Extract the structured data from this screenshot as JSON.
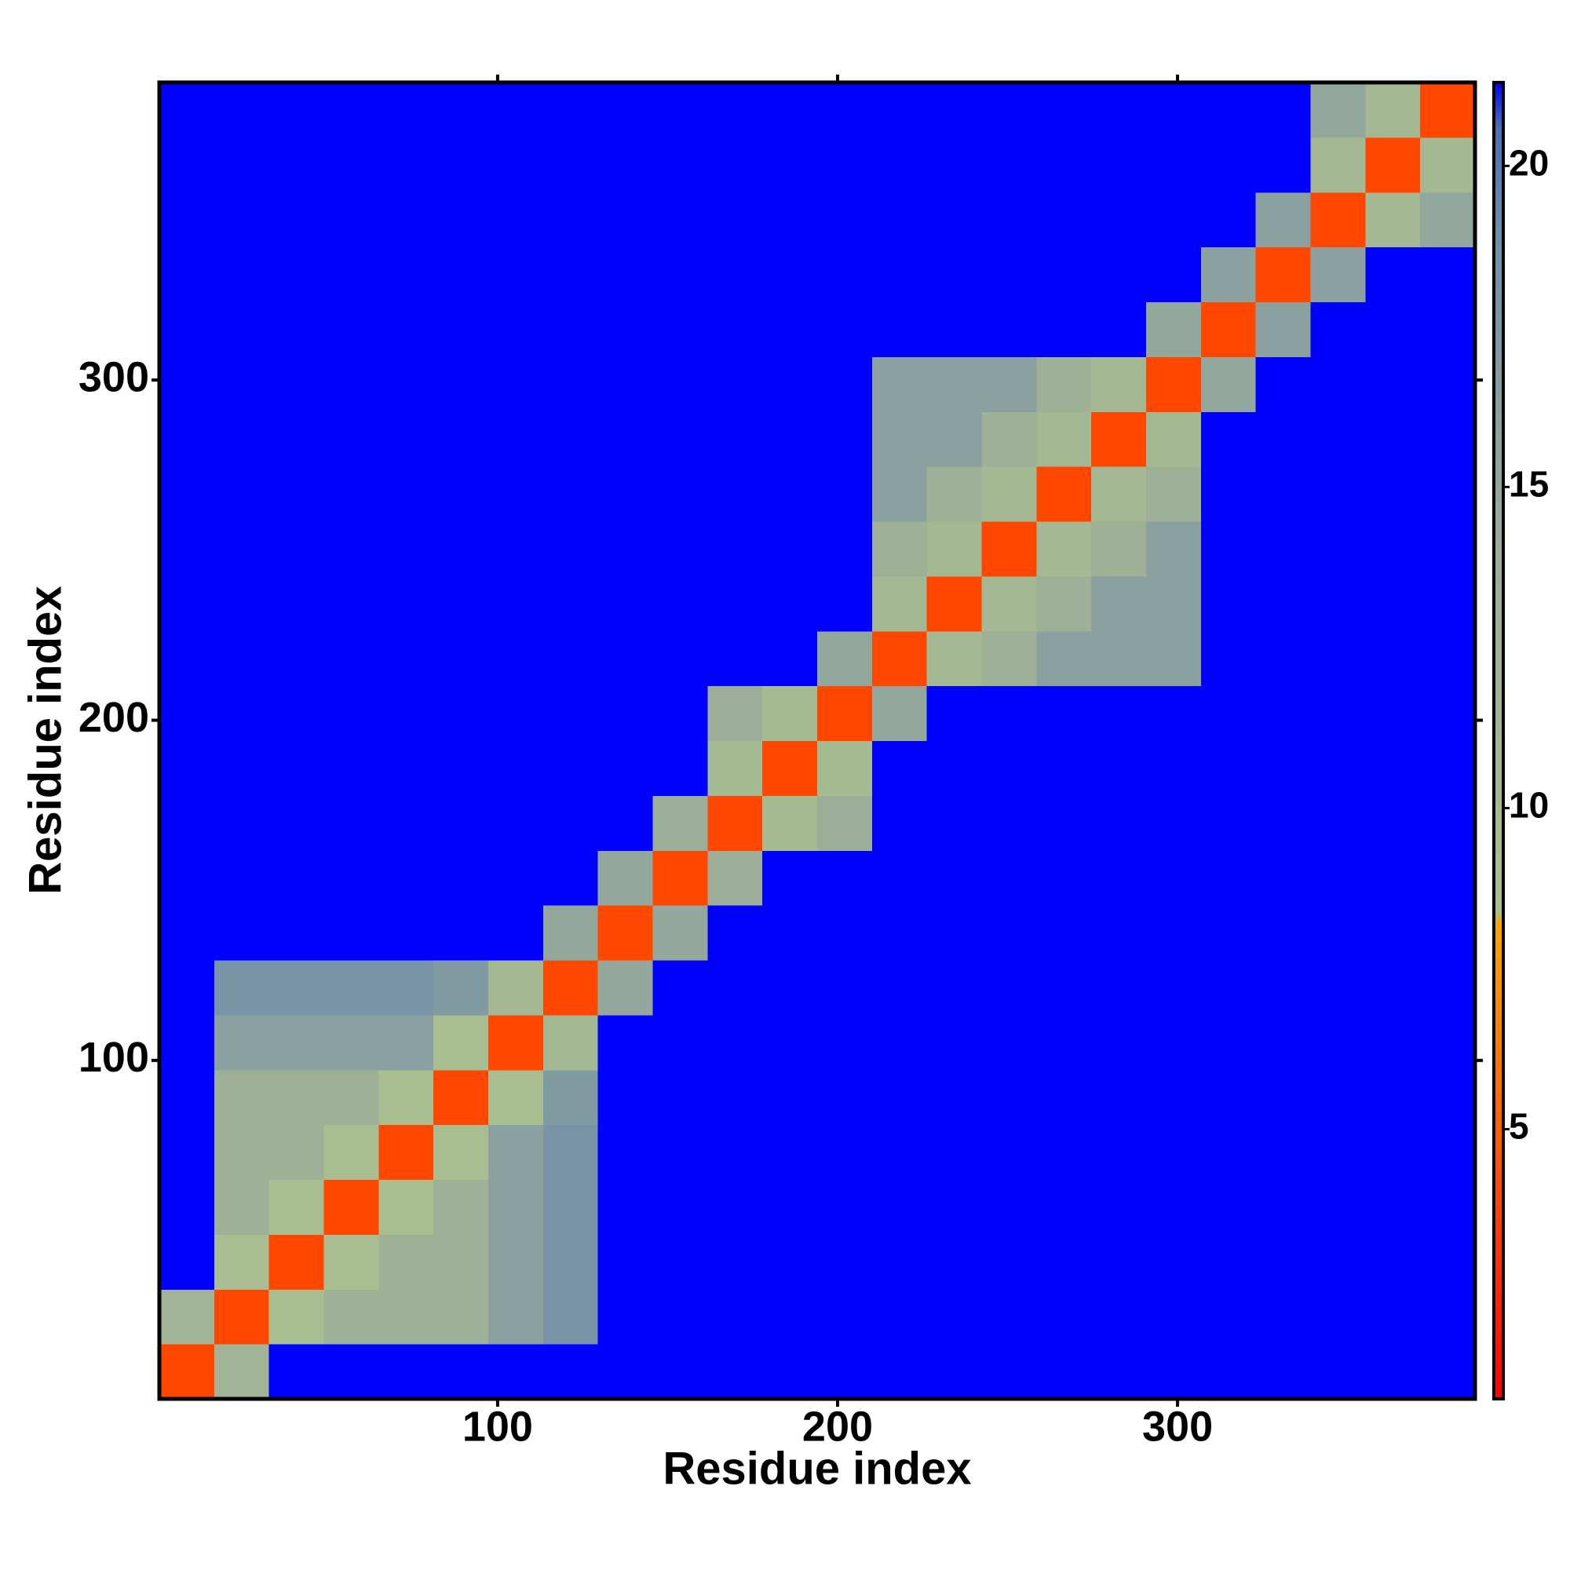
{
  "chart_data": {
    "type": "heatmap",
    "x_label": "Residue index",
    "y_label": "Residue index",
    "x": [
      8.56,
      24.69,
      40.81,
      56.94,
      73.06,
      89.19,
      105.31,
      121.44,
      137.56,
      153.69,
      169.81,
      185.94,
      202.06,
      218.19,
      234.31,
      250.44,
      266.56,
      282.69,
      298.81,
      314.94,
      331.06,
      347.19,
      363.31,
      379.44
    ],
    "y": [
      8.56,
      24.69,
      40.81,
      56.94,
      73.06,
      89.19,
      105.31,
      121.44,
      137.56,
      153.69,
      169.81,
      185.94,
      202.06,
      218.19,
      234.31,
      250.44,
      266.56,
      282.69,
      298.81,
      314.94,
      331.06,
      347.19,
      363.31,
      379.44
    ],
    "z": [
      [
        4,
        12,
        21.3,
        21.3,
        21.3,
        21.3,
        21.3,
        21.3,
        21.3,
        21.3,
        21.3,
        21.3,
        21.3,
        21.3,
        21.3,
        21.3,
        21.3,
        21.3,
        21.3,
        21.3,
        21.3,
        21.3,
        21.3,
        21.3
      ],
      [
        12,
        4,
        9,
        13,
        13,
        13,
        16,
        18,
        21.3,
        21.3,
        21.3,
        21.3,
        21.3,
        21.3,
        21.3,
        21.3,
        21.3,
        21.3,
        21.3,
        21.3,
        21.3,
        21.3,
        21.3,
        21.3
      ],
      [
        21.3,
        9,
        4,
        9,
        13,
        13,
        16,
        18,
        21.3,
        21.3,
        21.3,
        21.3,
        21.3,
        21.3,
        21.3,
        21.3,
        21.3,
        21.3,
        21.3,
        21.3,
        21.3,
        21.3,
        21.3,
        21.3
      ],
      [
        21.3,
        13,
        9,
        4,
        9,
        13,
        16,
        18,
        21.3,
        21.3,
        21.3,
        21.3,
        21.3,
        21.3,
        21.3,
        21.3,
        21.3,
        21.3,
        21.3,
        21.3,
        21.3,
        21.3,
        21.3,
        21.3
      ],
      [
        21.3,
        13,
        13,
        9,
        4,
        9,
        16,
        18,
        21.3,
        21.3,
        21.3,
        21.3,
        21.3,
        21.3,
        21.3,
        21.3,
        21.3,
        21.3,
        21.3,
        21.3,
        21.3,
        21.3,
        21.3,
        21.3
      ],
      [
        21.3,
        13,
        13,
        13,
        9,
        4,
        9,
        17,
        21.3,
        21.3,
        21.3,
        21.3,
        21.3,
        21.3,
        21.3,
        21.3,
        21.3,
        21.3,
        21.3,
        21.3,
        21.3,
        21.3,
        21.3,
        21.3
      ],
      [
        21.3,
        16,
        16,
        16,
        16,
        9,
        4,
        11,
        21.3,
        21.3,
        21.3,
        21.3,
        21.3,
        21.3,
        21.3,
        21.3,
        21.3,
        21.3,
        21.3,
        21.3,
        21.3,
        21.3,
        21.3,
        21.3
      ],
      [
        21.3,
        18,
        18,
        18,
        18,
        17,
        11,
        4,
        15,
        21.3,
        21.3,
        21.3,
        21.3,
        21.3,
        21.3,
        21.3,
        21.3,
        21.3,
        21.3,
        21.3,
        21.3,
        21.3,
        21.3,
        21.3
      ],
      [
        21.3,
        21.3,
        21.3,
        21.3,
        21.3,
        21.3,
        21.3,
        15,
        4,
        15,
        21.3,
        21.3,
        21.3,
        21.3,
        21.3,
        21.3,
        21.3,
        21.3,
        21.3,
        21.3,
        21.3,
        21.3,
        21.3,
        21.3
      ],
      [
        21.3,
        21.3,
        21.3,
        21.3,
        21.3,
        21.3,
        21.3,
        21.3,
        15,
        4,
        14,
        21.3,
        21.3,
        21.3,
        21.3,
        21.3,
        21.3,
        21.3,
        21.3,
        21.3,
        21.3,
        21.3,
        21.3,
        21.3
      ],
      [
        21.3,
        21.3,
        21.3,
        21.3,
        21.3,
        21.3,
        21.3,
        21.3,
        21.3,
        14,
        4,
        10,
        14,
        21.3,
        21.3,
        21.3,
        21.3,
        21.3,
        21.3,
        21.3,
        21.3,
        21.3,
        21.3,
        21.3
      ],
      [
        21.3,
        21.3,
        21.3,
        21.3,
        21.3,
        21.3,
        21.3,
        21.3,
        21.3,
        21.3,
        10,
        4,
        10,
        21.3,
        21.3,
        21.3,
        21.3,
        21.3,
        21.3,
        21.3,
        21.3,
        21.3,
        21.3,
        21.3
      ],
      [
        21.3,
        21.3,
        21.3,
        21.3,
        21.3,
        21.3,
        21.3,
        21.3,
        21.3,
        21.3,
        14,
        10,
        4,
        15,
        21.3,
        21.3,
        21.3,
        21.3,
        21.3,
        21.3,
        21.3,
        21.3,
        21.3,
        21.3
      ],
      [
        21.3,
        21.3,
        21.3,
        21.3,
        21.3,
        21.3,
        21.3,
        21.3,
        21.3,
        21.3,
        21.3,
        21.3,
        15,
        4,
        11,
        13,
        16,
        16,
        16,
        21.3,
        21.3,
        21.3,
        21.3,
        21.3
      ],
      [
        21.3,
        21.3,
        21.3,
        21.3,
        21.3,
        21.3,
        21.3,
        21.3,
        21.3,
        21.3,
        21.3,
        21.3,
        21.3,
        11,
        4,
        11,
        13,
        16,
        16,
        21.3,
        21.3,
        21.3,
        21.3,
        21.3
      ],
      [
        21.3,
        21.3,
        21.3,
        21.3,
        21.3,
        21.3,
        21.3,
        21.3,
        21.3,
        21.3,
        21.3,
        21.3,
        21.3,
        13,
        11,
        4,
        11,
        13,
        16,
        21.3,
        21.3,
        21.3,
        21.3,
        21.3
      ],
      [
        21.3,
        21.3,
        21.3,
        21.3,
        21.3,
        21.3,
        21.3,
        21.3,
        21.3,
        21.3,
        21.3,
        21.3,
        21.3,
        16,
        13,
        11,
        4,
        11,
        13,
        21.3,
        21.3,
        21.3,
        21.3,
        21.3
      ],
      [
        21.3,
        21.3,
        21.3,
        21.3,
        21.3,
        21.3,
        21.3,
        21.3,
        21.3,
        21.3,
        21.3,
        21.3,
        21.3,
        16,
        16,
        13,
        11,
        4,
        11,
        21.3,
        21.3,
        21.3,
        21.3,
        21.3
      ],
      [
        21.3,
        21.3,
        21.3,
        21.3,
        21.3,
        21.3,
        21.3,
        21.3,
        21.3,
        21.3,
        21.3,
        21.3,
        21.3,
        16,
        16,
        16,
        13,
        11,
        4,
        15,
        21.3,
        21.3,
        21.3,
        21.3
      ],
      [
        21.3,
        21.3,
        21.3,
        21.3,
        21.3,
        21.3,
        21.3,
        21.3,
        21.3,
        21.3,
        21.3,
        21.3,
        21.3,
        21.3,
        21.3,
        21.3,
        21.3,
        21.3,
        15,
        4,
        16,
        21.3,
        21.3,
        21.3
      ],
      [
        21.3,
        21.3,
        21.3,
        21.3,
        21.3,
        21.3,
        21.3,
        21.3,
        21.3,
        21.3,
        21.3,
        21.3,
        21.3,
        21.3,
        21.3,
        21.3,
        21.3,
        21.3,
        21.3,
        16,
        4,
        16,
        21.3,
        21.3
      ],
      [
        21.3,
        21.3,
        21.3,
        21.3,
        21.3,
        21.3,
        21.3,
        21.3,
        21.3,
        21.3,
        21.3,
        21.3,
        21.3,
        21.3,
        21.3,
        21.3,
        21.3,
        21.3,
        21.3,
        21.3,
        16,
        4,
        11,
        15
      ],
      [
        21.3,
        21.3,
        21.3,
        21.3,
        21.3,
        21.3,
        21.3,
        21.3,
        21.3,
        21.3,
        21.3,
        21.3,
        21.3,
        21.3,
        21.3,
        21.3,
        21.3,
        21.3,
        21.3,
        21.3,
        21.3,
        11,
        4,
        11
      ],
      [
        21.3,
        21.3,
        21.3,
        21.3,
        21.3,
        21.3,
        21.3,
        21.3,
        21.3,
        21.3,
        21.3,
        21.3,
        21.3,
        21.3,
        21.3,
        21.3,
        21.3,
        21.3,
        21.3,
        21.3,
        21.3,
        15,
        11,
        4
      ]
    ],
    "xlim": [
      0.5,
      387.5
    ],
    "ylim": [
      0.5,
      387.5
    ],
    "xticks": [
      100,
      200,
      300
    ],
    "yticks": [
      100,
      200,
      300
    ],
    "clim": [
      0.8,
      21.3
    ],
    "cticks": [
      5,
      10,
      15,
      20
    ],
    "colorscale": [
      [
        0.8,
        "#ff0000"
      ],
      [
        8.2,
        "#ffa500"
      ],
      [
        8.4,
        "#a9c08f"
      ],
      [
        14,
        "#9cae98"
      ],
      [
        19,
        "#6f8eaa"
      ],
      [
        20.6,
        "#4a6fb8"
      ],
      [
        21.3,
        "#0000ff"
      ]
    ]
  }
}
